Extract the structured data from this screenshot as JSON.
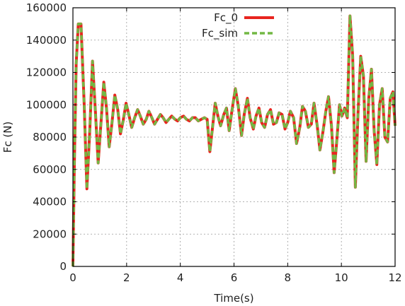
{
  "chart_data": {
    "type": "line",
    "title": "",
    "xlabel": "Time(s)",
    "ylabel": "Fc (N)",
    "xlim": [
      0,
      12
    ],
    "ylim": [
      0,
      160000
    ],
    "xticks": [
      0,
      2,
      4,
      6,
      8,
      10,
      12
    ],
    "yticks": [
      0,
      20000,
      40000,
      60000,
      80000,
      100000,
      120000,
      140000,
      160000
    ],
    "grid": true,
    "legend": "top-right",
    "x": [
      0,
      0.05,
      0.12,
      0.2,
      0.3,
      0.42,
      0.52,
      0.63,
      0.73,
      0.84,
      0.94,
      1.05,
      1.15,
      1.25,
      1.35,
      1.45,
      1.56,
      1.67,
      1.77,
      1.87,
      1.98,
      2.08,
      2.19,
      2.3,
      2.41,
      2.51,
      2.62,
      2.73,
      2.83,
      2.94,
      3.04,
      3.15,
      3.26,
      3.36,
      3.47,
      3.57,
      3.68,
      3.8,
      3.9,
      4.0,
      4.12,
      4.23,
      4.34,
      4.45,
      4.56,
      4.67,
      4.78,
      4.9,
      5.0,
      5.1,
      5.2,
      5.3,
      5.4,
      5.5,
      5.62,
      5.72,
      5.82,
      5.92,
      6.05,
      6.16,
      6.28,
      6.38,
      6.5,
      6.6,
      6.72,
      6.82,
      6.93,
      7.03,
      7.14,
      7.25,
      7.36,
      7.47,
      7.58,
      7.68,
      7.79,
      7.9,
      8.0,
      8.1,
      8.22,
      8.33,
      8.45,
      8.55,
      8.66,
      8.77,
      8.88,
      8.98,
      9.1,
      9.2,
      9.32,
      9.42,
      9.52,
      9.63,
      9.73,
      9.83,
      9.93,
      10.02,
      10.12,
      10.22,
      10.32,
      10.42,
      10.52,
      10.62,
      10.72,
      10.82,
      10.92,
      11.02,
      11.12,
      11.22,
      11.32,
      11.42,
      11.52,
      11.62,
      11.72,
      11.82,
      11.92,
      12.0
    ],
    "series": [
      {
        "name": "Fc_0",
        "color": "#e8251f",
        "style": "solid",
        "values": [
          0,
          60000,
          125000,
          150000,
          150000,
          100000,
          48000,
          85000,
          127000,
          95000,
          64000,
          90000,
          114000,
          98000,
          74000,
          88000,
          106000,
          97000,
          82000,
          90000,
          101000,
          94000,
          86000,
          92000,
          97000,
          93000,
          88000,
          91000,
          96000,
          92000,
          88000,
          91000,
          94000,
          92000,
          89000,
          91000,
          93000,
          91000,
          90000,
          92000,
          93000,
          91000,
          90000,
          92000,
          92000,
          90000,
          91000,
          92000,
          91000,
          71000,
          86000,
          101000,
          93000,
          87000,
          94000,
          98000,
          84000,
          96000,
          110000,
          99000,
          81000,
          94000,
          104000,
          92000,
          85000,
          93000,
          98000,
          89000,
          86000,
          94000,
          97000,
          88000,
          89000,
          95000,
          94000,
          85000,
          89000,
          96000,
          92000,
          76000,
          86000,
          99000,
          96000,
          86000,
          88000,
          101000,
          87000,
          72000,
          84000,
          96000,
          105000,
          87000,
          58000,
          78000,
          100000,
          93000,
          98000,
          92000,
          155000,
          130000,
          49000,
          95000,
          130000,
          118000,
          65000,
          104000,
          122000,
          84000,
          63000,
          100000,
          110000,
          80000,
          77000,
          104000,
          108000,
          87000
        ]
      },
      {
        "name": "Fc_sim",
        "color": "#72b844",
        "style": "dashed",
        "values": [
          0,
          60000,
          125000,
          150000,
          150000,
          100000,
          48000,
          85000,
          127000,
          95000,
          64000,
          90000,
          114000,
          98000,
          74000,
          88000,
          106000,
          97000,
          82000,
          90000,
          101000,
          94000,
          86000,
          92000,
          97000,
          93000,
          88000,
          91000,
          96000,
          92000,
          88000,
          91000,
          94000,
          92000,
          89000,
          91000,
          93000,
          91000,
          90000,
          92000,
          93000,
          91000,
          90000,
          92000,
          92000,
          90000,
          91000,
          92000,
          91000,
          71000,
          86000,
          101000,
          93000,
          87000,
          94000,
          98000,
          84000,
          96000,
          110000,
          99000,
          81000,
          94000,
          104000,
          92000,
          85000,
          93000,
          98000,
          89000,
          86000,
          94000,
          97000,
          88000,
          89000,
          95000,
          94000,
          85000,
          89000,
          96000,
          92000,
          76000,
          86000,
          99000,
          96000,
          86000,
          88000,
          101000,
          87000,
          72000,
          84000,
          96000,
          105000,
          87000,
          58000,
          78000,
          100000,
          93000,
          98000,
          92000,
          155000,
          130000,
          49000,
          95000,
          130000,
          118000,
          65000,
          104000,
          122000,
          84000,
          63000,
          100000,
          110000,
          80000,
          77000,
          104000,
          108000,
          87000
        ]
      }
    ]
  }
}
